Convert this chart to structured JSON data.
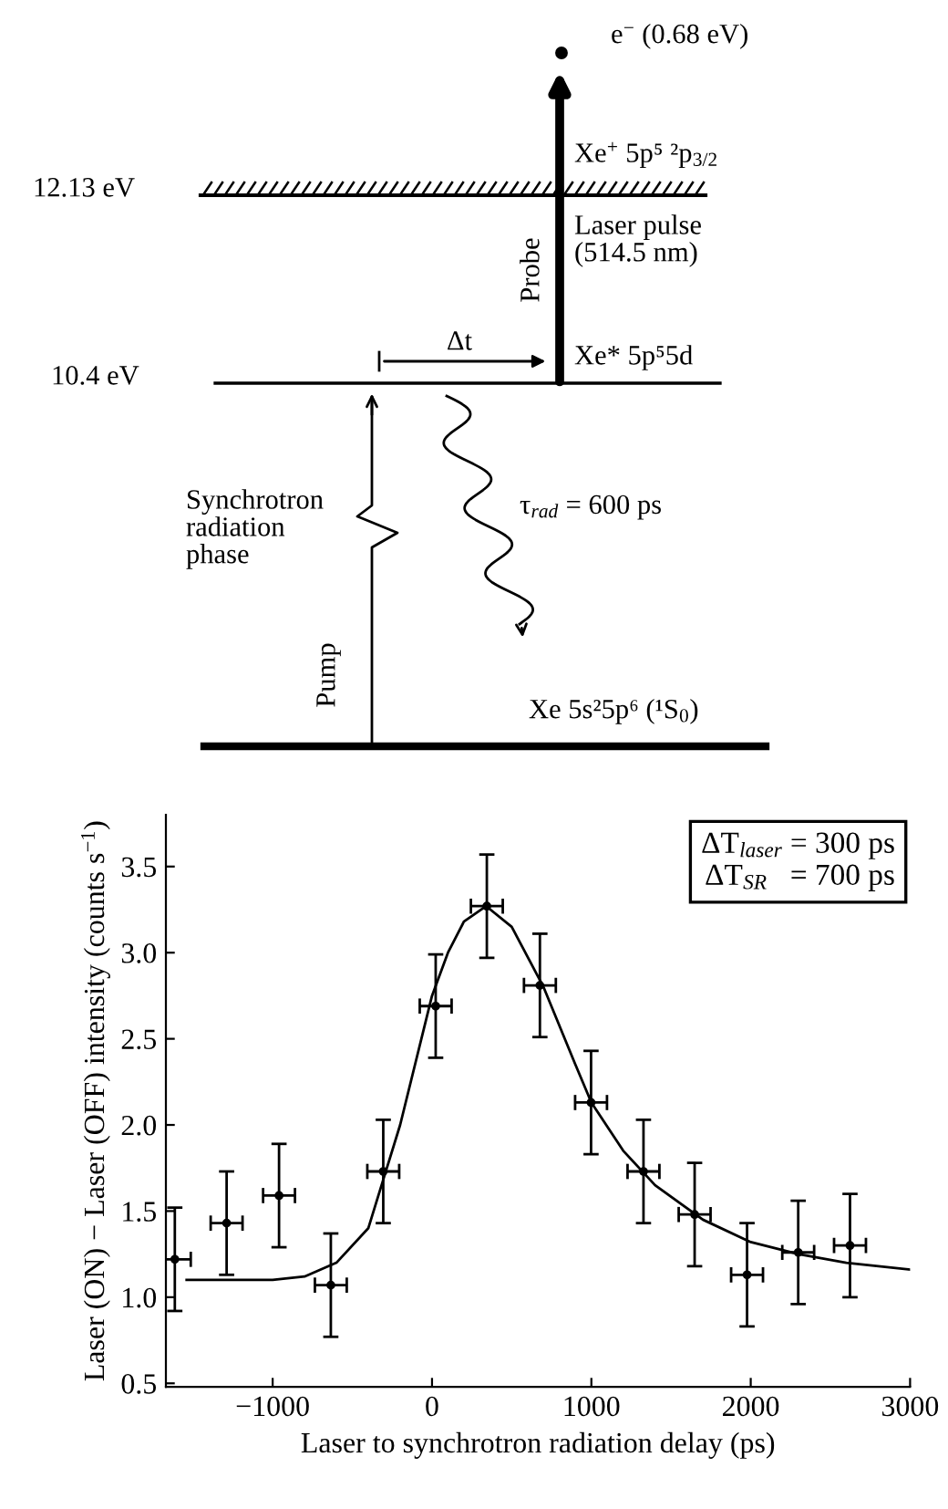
{
  "chart_data": [
    {
      "type": "other",
      "annotations": [
        "e$^{−}$ (0.68 eV)",
        "Xe$^{+}$ 5p⁵ ²p$_{3/2}$",
        "12.13 eV",
        "Laser pulse\n(514.5 nm)",
        "Probe",
        "Δt",
        "Xe* 5p⁵5d",
        "10.4 eV",
        "Synchrotron\nradiation\nphase",
        "τ$_{rad}$ = 600 ps",
        "Pump",
        "Xe 5s²5p⁶ (¹S$_{0}$)"
      ]
    },
    {
      "type": "scatter",
      "xlabel": "Laser to synchrotron radiation delay (ps)",
      "ylabel": "Laser (ON) − Laser (OFF) intensity (counts s$^{−1}$)",
      "xlim": [
        -1670,
        3000
      ],
      "ylim": [
        0.48,
        3.8
      ],
      "xticks": [
        {
          "value": -1000,
          "label": "−1000"
        },
        0,
        1000,
        2000,
        3000
      ],
      "yticks": [
        0.5,
        {
          "value": 1,
          "label": "1.0"
        },
        1.5,
        {
          "value": 2,
          "label": "2.0"
        },
        2.5,
        {
          "value": 3,
          "label": "3.0"
        },
        3.5
      ],
      "grid": false,
      "legend": false,
      "marker": "circle",
      "annotations": [
        "ΔT$_{laser}$ = 300 ps\nΔT$_{SR}$   = 700 ps"
      ],
      "series": [
        {
          "type": "scatter",
          "color": "#000000",
          "x": [
            -1614,
            -1289,
            -960,
            -635,
            -306,
            23,
            344,
            677,
            998,
            1327,
            1648,
            1977,
            2298,
            2623
          ],
          "values": [
            1.22,
            1.43,
            1.59,
            1.07,
            1.73,
            2.69,
            3.27,
            2.81,
            2.13,
            1.73,
            1.48,
            1.13,
            1.26,
            1.3
          ],
          "errors": [
            0.3,
            0.3,
            0.3,
            0.3,
            0.3,
            0.3,
            0.3,
            0.3,
            0.3,
            0.3,
            0.3,
            0.3,
            0.3,
            0.3
          ],
          "xerrors": [
            100,
            100,
            100,
            100,
            100,
            100,
            100,
            100,
            100,
            100,
            100,
            100,
            100,
            100
          ]
        },
        {
          "type": "line",
          "color": "#000000",
          "line_style": "solid",
          "marker": "none",
          "x": [
            -1540,
            -1000,
            -800,
            -600,
            -400,
            -300,
            -200,
            0,
            100,
            200,
            340,
            500,
            700,
            900,
            1000,
            1200,
            1400,
            1700,
            2000,
            2300,
            2600,
            3000
          ],
          "values": [
            1.1,
            1.1,
            1.12,
            1.2,
            1.4,
            1.7,
            2.0,
            2.75,
            3.0,
            3.18,
            3.27,
            3.15,
            2.8,
            2.35,
            2.13,
            1.85,
            1.65,
            1.45,
            1.32,
            1.25,
            1.2,
            1.16
          ]
        }
      ]
    }
  ]
}
